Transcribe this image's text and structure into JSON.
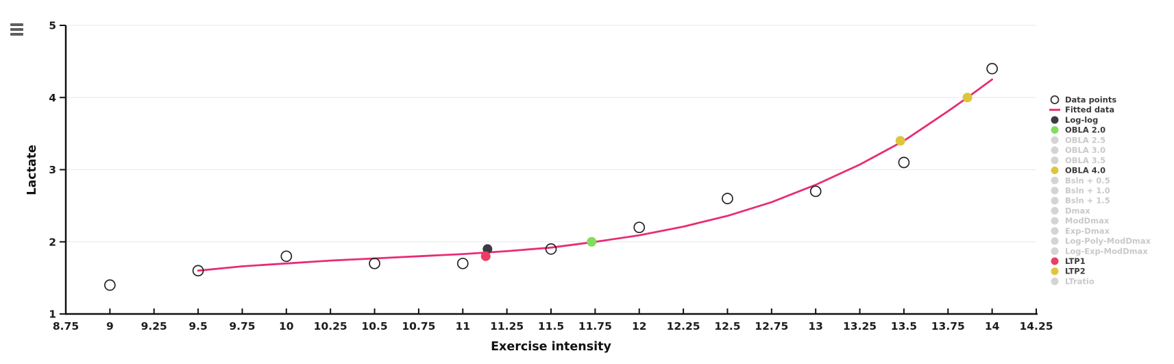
{
  "menu": {
    "icon": "hamburger-menu-icon"
  },
  "colors": {
    "background": "#ffffff",
    "axis": "#111111",
    "grid": "#ececec",
    "fitted_line": "#e72d74",
    "active_legend_text": "#3a3a3a",
    "dimmed_legend_text": "#c9c9c9",
    "dimmed_marker": "#d4d4d4",
    "open_point_stroke": "#222222"
  },
  "chart_data": {
    "type": "scatter",
    "title": "",
    "xlabel": "Exercise intensity",
    "ylabel": "Lactate",
    "xlim": [
      8.75,
      14.25
    ],
    "ylim": [
      1,
      5
    ],
    "x_ticks": [
      "8.75",
      "9",
      "9.25",
      "9.5",
      "9.75",
      "10",
      "10.25",
      "10.5",
      "10.75",
      "11",
      "11.25",
      "11.5",
      "11.75",
      "12",
      "12.25",
      "12.5",
      "12.75",
      "13",
      "13.25",
      "13.5",
      "13.75",
      "14",
      "14.25"
    ],
    "y_ticks": [
      "1",
      "2",
      "3",
      "4",
      "5"
    ],
    "grid": "horizontal",
    "legend_position": "right",
    "series": [
      {
        "name": "Data points",
        "type": "scatter-open",
        "color": "#222222",
        "points": [
          [
            9,
            1.4
          ],
          [
            9.5,
            1.6
          ],
          [
            10,
            1.8
          ],
          [
            10.5,
            1.7
          ],
          [
            11,
            1.7
          ],
          [
            11.5,
            1.9
          ],
          [
            12,
            2.2
          ],
          [
            12.5,
            2.6
          ],
          [
            13,
            2.7
          ],
          [
            13.5,
            3.1
          ],
          [
            14,
            4.4
          ]
        ]
      },
      {
        "name": "Fitted data",
        "type": "line",
        "color": "#e72d74",
        "points": [
          [
            9.5,
            1.6
          ],
          [
            9.75,
            1.66
          ],
          [
            10,
            1.7
          ],
          [
            10.25,
            1.74
          ],
          [
            10.5,
            1.77
          ],
          [
            10.75,
            1.8
          ],
          [
            11,
            1.83
          ],
          [
            11.25,
            1.87
          ],
          [
            11.5,
            1.92
          ],
          [
            11.75,
            2.0
          ],
          [
            12,
            2.09
          ],
          [
            12.25,
            2.21
          ],
          [
            12.5,
            2.36
          ],
          [
            12.75,
            2.55
          ],
          [
            13,
            2.79
          ],
          [
            13.25,
            3.07
          ],
          [
            13.5,
            3.4
          ],
          [
            13.75,
            3.81
          ],
          [
            13.86,
            4.0
          ],
          [
            14,
            4.25
          ]
        ]
      },
      {
        "name": "Log-log",
        "type": "marker",
        "color": "#3b3b41",
        "points": [
          [
            11.14,
            1.9
          ]
        ]
      },
      {
        "name": "LTP1",
        "type": "marker",
        "color": "#eb3e63",
        "points": [
          [
            11.13,
            1.8
          ]
        ]
      },
      {
        "name": "OBLA 2.0",
        "type": "marker",
        "color": "#81de5c",
        "points": [
          [
            11.73,
            2.0
          ]
        ]
      },
      {
        "name": "LTP2",
        "type": "marker",
        "color": "#ddc63d",
        "points": [
          [
            13.48,
            3.4
          ]
        ]
      },
      {
        "name": "OBLA 4.0",
        "type": "marker",
        "color": "#ddc63d",
        "points": [
          [
            13.86,
            4.0
          ]
        ]
      }
    ],
    "legend": [
      {
        "label": "Data points",
        "marker": "open-circle",
        "color": "#333333",
        "active": true
      },
      {
        "label": "Fitted data",
        "marker": "line",
        "color": "#e72d74",
        "active": true
      },
      {
        "label": "Log-log",
        "marker": "circle",
        "color": "#3b3b41",
        "active": true
      },
      {
        "label": "OBLA 2.0",
        "marker": "circle",
        "color": "#81de5c",
        "active": true
      },
      {
        "label": "OBLA 2.5",
        "marker": "circle",
        "color": "#d4d4d4",
        "active": false
      },
      {
        "label": "OBLA 3.0",
        "marker": "circle",
        "color": "#d4d4d4",
        "active": false
      },
      {
        "label": "OBLA 3.5",
        "marker": "circle",
        "color": "#d4d4d4",
        "active": false
      },
      {
        "label": "OBLA 4.0",
        "marker": "circle",
        "color": "#ddc63d",
        "active": true
      },
      {
        "label": "Bsln + 0.5",
        "marker": "circle",
        "color": "#d4d4d4",
        "active": false
      },
      {
        "label": "Bsln + 1.0",
        "marker": "circle",
        "color": "#d4d4d4",
        "active": false
      },
      {
        "label": "Bsln + 1.5",
        "marker": "circle",
        "color": "#d4d4d4",
        "active": false
      },
      {
        "label": "Dmax",
        "marker": "circle",
        "color": "#d4d4d4",
        "active": false
      },
      {
        "label": "ModDmax",
        "marker": "circle",
        "color": "#d4d4d4",
        "active": false
      },
      {
        "label": "Exp-Dmax",
        "marker": "circle",
        "color": "#d4d4d4",
        "active": false
      },
      {
        "label": "Log-Poly-ModDmax",
        "marker": "circle",
        "color": "#d4d4d4",
        "active": false
      },
      {
        "label": "Log-Exp-ModDmax",
        "marker": "circle",
        "color": "#d4d4d4",
        "active": false
      },
      {
        "label": "LTP1",
        "marker": "circle",
        "color": "#eb3e63",
        "active": true
      },
      {
        "label": "LTP2",
        "marker": "circle",
        "color": "#ddc63d",
        "active": true
      },
      {
        "label": "LTratio",
        "marker": "circle",
        "color": "#d4d4d4",
        "active": false
      }
    ]
  }
}
